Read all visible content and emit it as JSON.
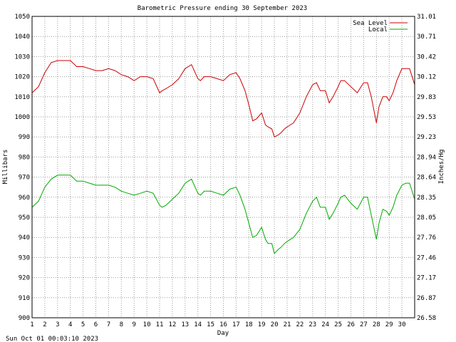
{
  "chart_data": {
    "type": "line",
    "title": "Barometric Pressure ending 30 September 2023",
    "xlabel": "Day",
    "ylabel_left": "Millibars",
    "ylabel_right": "Inches/Hg",
    "footer": "Sun Oct 01 00:03:10 2023",
    "xlim": [
      1,
      31
    ],
    "ylim": [
      900,
      1050
    ],
    "x_ticks": [
      1,
      2,
      3,
      4,
      5,
      6,
      7,
      8,
      9,
      10,
      11,
      12,
      13,
      14,
      15,
      16,
      17,
      18,
      19,
      20,
      21,
      22,
      23,
      24,
      25,
      26,
      27,
      28,
      29,
      30
    ],
    "y_ticks_left": [
      "900",
      "910",
      "920",
      "930",
      "940",
      "950",
      "960",
      "970",
      "980",
      "990",
      "1000",
      "1010",
      "1020",
      "1030",
      "1040",
      "1050"
    ],
    "y_ticks_right": [
      "26.58",
      "26.87",
      "27.17",
      "27.46",
      "27.76",
      "28.05",
      "28.35",
      "28.64",
      "28.94",
      "29.23",
      "29.53",
      "29.83",
      "30.12",
      "30.42",
      "30.71",
      "31.01"
    ],
    "grid": true,
    "legend_position": "top-right",
    "series": [
      {
        "name": "Sea Level",
        "color": "#cc0000",
        "x": [
          1.0,
          1.5,
          2.0,
          2.5,
          3.0,
          3.5,
          4.0,
          4.5,
          5.0,
          5.5,
          6.0,
          6.5,
          7.0,
          7.5,
          8.0,
          8.5,
          9.0,
          9.5,
          10.0,
          10.5,
          11.0,
          11.2,
          11.5,
          12.0,
          12.5,
          13.0,
          13.5,
          14.0,
          14.2,
          14.5,
          15.0,
          15.5,
          16.0,
          16.5,
          17.0,
          17.3,
          17.7,
          18.0,
          18.3,
          18.6,
          19.0,
          19.3,
          19.5,
          19.8,
          20.0,
          20.3,
          20.5,
          20.8,
          21.0,
          21.5,
          22.0,
          22.5,
          23.0,
          23.3,
          23.6,
          24.0,
          24.3,
          24.6,
          25.0,
          25.2,
          25.5,
          26.0,
          26.5,
          27.0,
          27.3,
          27.6,
          28.0,
          28.2,
          28.5,
          28.8,
          29.0,
          29.3,
          29.6,
          30.0,
          30.3,
          30.6,
          31.0
        ],
        "y": [
          1012,
          1015,
          1022,
          1027,
          1028,
          1028,
          1028,
          1025,
          1025,
          1024,
          1023,
          1023,
          1024,
          1023,
          1021,
          1020,
          1018,
          1020,
          1020,
          1019,
          1012,
          1013,
          1014,
          1016,
          1019,
          1024,
          1026,
          1019,
          1018,
          1020,
          1020,
          1019,
          1018,
          1021,
          1022,
          1019,
          1013,
          1006,
          998,
          999,
          1002,
          996,
          995,
          994,
          990,
          991,
          992,
          994,
          995,
          997,
          1002,
          1010,
          1016,
          1017,
          1013,
          1013,
          1007,
          1010,
          1015,
          1018,
          1018,
          1015,
          1012,
          1017,
          1017,
          1010,
          997,
          1005,
          1010,
          1010,
          1008,
          1012,
          1018,
          1024,
          1024,
          1024,
          1016
        ]
      },
      {
        "name": "Local",
        "color": "#00aa00",
        "x": [
          1.0,
          1.5,
          2.0,
          2.5,
          3.0,
          3.5,
          4.0,
          4.5,
          5.0,
          5.5,
          6.0,
          6.5,
          7.0,
          7.5,
          8.0,
          8.5,
          9.0,
          9.5,
          10.0,
          10.5,
          11.0,
          11.2,
          11.5,
          12.0,
          12.5,
          13.0,
          13.5,
          14.0,
          14.2,
          14.5,
          15.0,
          15.5,
          16.0,
          16.5,
          17.0,
          17.3,
          17.7,
          18.0,
          18.3,
          18.6,
          19.0,
          19.3,
          19.5,
          19.8,
          20.0,
          20.3,
          20.5,
          20.8,
          21.0,
          21.5,
          22.0,
          22.5,
          23.0,
          23.3,
          23.6,
          24.0,
          24.3,
          24.6,
          25.0,
          25.2,
          25.5,
          26.0,
          26.5,
          27.0,
          27.3,
          27.6,
          28.0,
          28.2,
          28.5,
          28.8,
          29.0,
          29.3,
          29.6,
          30.0,
          30.3,
          30.6,
          31.0
        ],
        "y": [
          955,
          958,
          965,
          969,
          971,
          971,
          971,
          968,
          968,
          967,
          966,
          966,
          966,
          965,
          963,
          962,
          961,
          962,
          963,
          962,
          956,
          955,
          956,
          959,
          962,
          967,
          969,
          962,
          961,
          963,
          963,
          962,
          961,
          964,
          965,
          961,
          954,
          947,
          940,
          941,
          945,
          939,
          937,
          937,
          932,
          934,
          935,
          937,
          938,
          940,
          944,
          952,
          958,
          960,
          955,
          955,
          949,
          952,
          957,
          960,
          961,
          957,
          954,
          960,
          960,
          951,
          939,
          947,
          954,
          953,
          951,
          955,
          961,
          966,
          967,
          967,
          959
        ]
      }
    ]
  }
}
